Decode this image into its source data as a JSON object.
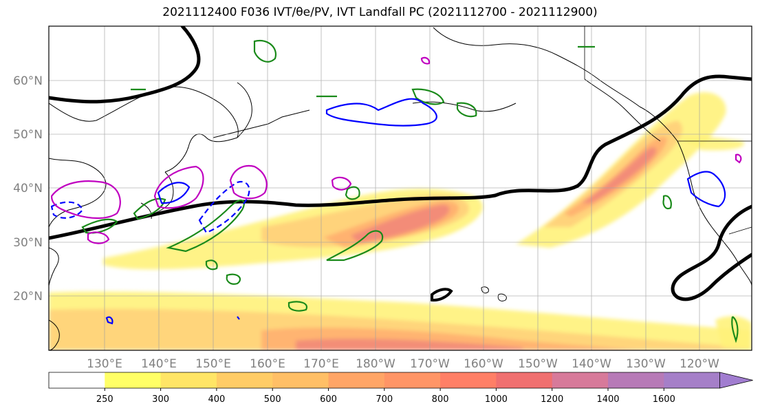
{
  "title": "2021112400 F036 IVT/θe/PV, IVT Landfall PC (2021112700 - 2021112900)",
  "map": {
    "lat_ticks": [
      "60°N",
      "50°N",
      "40°N",
      "30°N",
      "20°N"
    ],
    "lon_ticks": [
      "130°E",
      "140°E",
      "150°E",
      "160°E",
      "170°E",
      "180°W",
      "170°W",
      "160°W",
      "150°W",
      "140°W",
      "130°W",
      "120°W"
    ]
  },
  "colorbar": {
    "levels": [
      "250",
      "300",
      "400",
      "500",
      "600",
      "700",
      "800",
      "1000",
      "1200",
      "1400",
      "1600"
    ],
    "colors": [
      "#ffffff",
      "#ffff66",
      "#ffe566",
      "#ffcc66",
      "#ffbf66",
      "#ffa566",
      "#ff9566",
      "#ff7f66",
      "#f07070",
      "#d77a9a",
      "#b77ab7",
      "#a57fc8",
      "#a17dd0"
    ]
  },
  "colors": {
    "ivt_fill_low": "#ffff80",
    "ivt_fill_mid": "#ffb466",
    "ivt_fill_high": "#f47070",
    "theta_e_contour": "#000000",
    "pv_positive": "#0000ff",
    "pv_negative": "#1a8a1a",
    "landfall_pc": "#c000c0"
  }
}
